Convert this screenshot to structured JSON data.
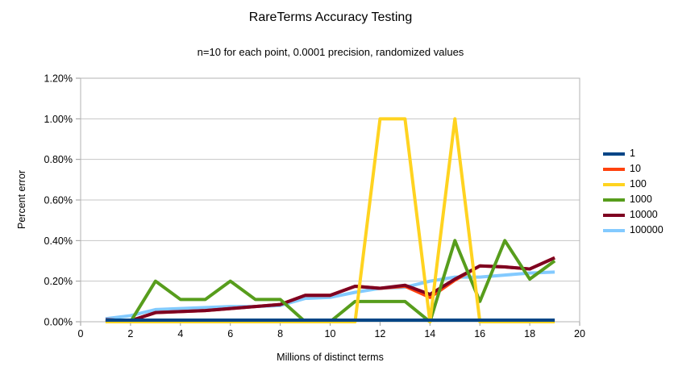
{
  "title": "RareTerms Accuracy Testing",
  "subtitle": "n=10 for each point, 0.0001 precision, randomized values",
  "chart_data": {
    "type": "line",
    "title": "RareTerms Accuracy Testing",
    "subtitle": "n=10 for each point, 0.0001 precision, randomized values",
    "xlabel": "Millions of distinct terms",
    "ylabel": "Percent error",
    "xlim": [
      0,
      20
    ],
    "ylim": [
      0,
      1.2
    ],
    "x_ticks": [
      0,
      2,
      4,
      6,
      8,
      10,
      12,
      14,
      16,
      18,
      20
    ],
    "y_tick_values": [
      0,
      0.2,
      0.4,
      0.6,
      0.8,
      1.0,
      1.2
    ],
    "y_tick_labels": [
      "0.00%",
      "0.20%",
      "0.40%",
      "0.60%",
      "0.80%",
      "1.00%",
      "1.20%"
    ],
    "grid": "horizontal",
    "legend_position": "right",
    "unit": "percent error",
    "x": [
      1,
      2,
      3,
      4,
      5,
      6,
      7,
      8,
      9,
      10,
      11,
      12,
      13,
      14,
      15,
      16,
      17,
      18,
      19
    ],
    "series": [
      {
        "name": "1",
        "color": "#004586",
        "values": [
          0,
          0,
          0,
          0,
          0,
          0,
          0,
          0,
          0,
          0,
          0,
          0,
          0,
          0,
          0,
          0,
          0,
          0,
          0
        ]
      },
      {
        "name": "10",
        "color": "#FF420E",
        "values": [
          0.01,
          0.005,
          0.045,
          0.05,
          0.055,
          0.065,
          0.075,
          0.085,
          0.13,
          0.13,
          0.175,
          0.165,
          0.175,
          0.12,
          0.205,
          0.275,
          0.27,
          0.26,
          0.315
        ]
      },
      {
        "name": "100",
        "color": "#FFD320",
        "values": [
          0,
          0,
          0,
          0,
          0,
          0,
          0,
          0,
          0,
          0,
          0,
          1.0,
          1.0,
          0,
          1.0,
          0,
          0,
          0,
          0
        ]
      },
      {
        "name": "1000",
        "color": "#579D1C",
        "values": [
          0,
          0,
          0.2,
          0.11,
          0.11,
          0.2,
          0.11,
          0.11,
          0,
          0,
          0.1,
          0.1,
          0.1,
          0,
          0.4,
          0.1,
          0.4,
          0.21,
          0.3
        ]
      },
      {
        "name": "10000",
        "color": "#7E0021",
        "values": [
          0.01,
          0.005,
          0.045,
          0.05,
          0.055,
          0.065,
          0.075,
          0.085,
          0.13,
          0.13,
          0.175,
          0.165,
          0.18,
          0.135,
          0.21,
          0.275,
          0.27,
          0.26,
          0.315
        ]
      },
      {
        "name": "100000",
        "color": "#83CAFF",
        "values": [
          0.015,
          0.03,
          0.06,
          0.065,
          0.07,
          0.075,
          0.075,
          0.08,
          0.115,
          0.12,
          0.145,
          0.165,
          0.17,
          0.2,
          0.22,
          0.22,
          0.23,
          0.24,
          0.245
        ]
      }
    ],
    "draw_order": [
      "100000",
      "10",
      "10000",
      "1000",
      "100",
      "1"
    ]
  },
  "style": {
    "grid_color": "#c6c6c6",
    "frame_color": "#b3b3b3",
    "tick_color": "#9a9a9a",
    "text_color": "#000000",
    "background": "#ffffff",
    "line_width": 4
  }
}
